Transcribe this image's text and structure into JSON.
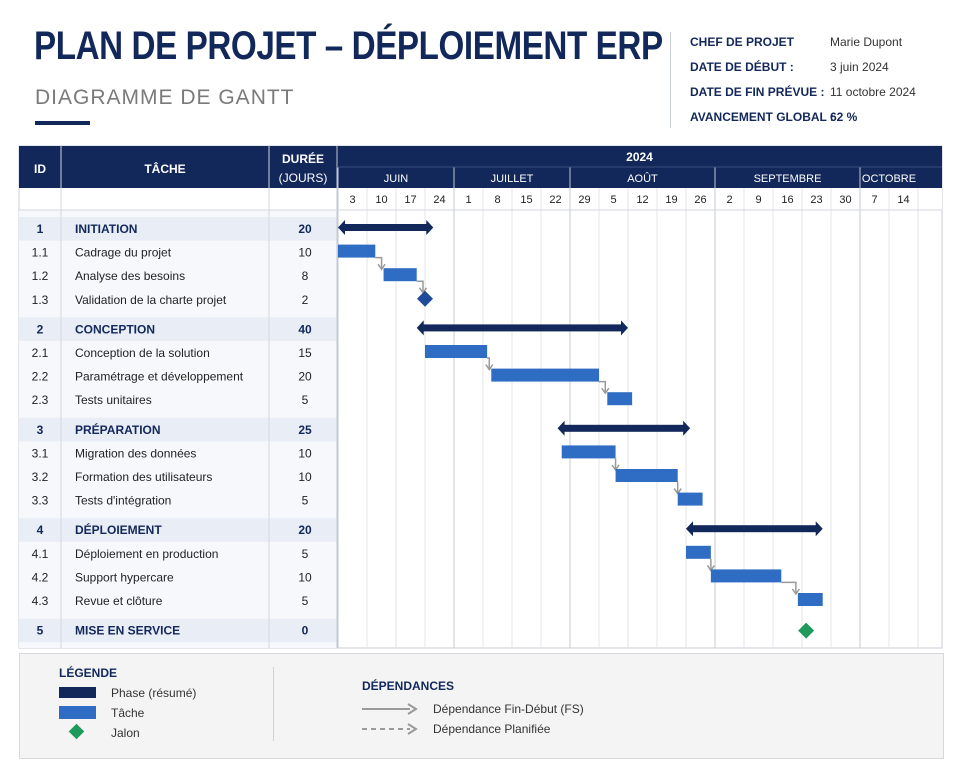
{
  "header": {
    "title": "PLAN DE PROJET – DÉPLOIEMENT ERP",
    "subtitle": "DIAGRAMME DE GANTT"
  },
  "info": [
    {
      "label": "CHEF DE PROJET",
      "value": "Marie Dupont"
    },
    {
      "label": "DATE DE DÉBUT :",
      "value": "3 juin 2024"
    },
    {
      "label": "DATE DE FIN PRÉVUE :",
      "value": "11 octobre 2024"
    },
    {
      "label": "AVANCEMENT GLOBAL :",
      "value": "62 %"
    }
  ],
  "chart_data": {
    "type": "gantt",
    "columns": {
      "id": "ID",
      "task": "TÂCHE",
      "duration_line1": "DURÉE",
      "duration_line2": "(JOURS)"
    },
    "year": "2024",
    "months": [
      "JUIN",
      "JUILLET",
      "AOÛT",
      "SEPTEMBRE",
      "OCTOBRE"
    ],
    "week_ticks": [
      "3",
      "10",
      "17",
      "24",
      "1",
      "8",
      "15",
      "22",
      "29",
      "5",
      "12",
      "19",
      "26",
      "2",
      "9",
      "16",
      "23",
      "30",
      "7",
      "14"
    ],
    "month_week_counts": [
      4,
      4,
      5,
      5,
      2
    ],
    "rows": [
      {
        "id": "1",
        "name": "INITIATION",
        "duration": "20",
        "type": "phase",
        "start": "2024-06-03",
        "end": "2024-06-26"
      },
      {
        "id": "1.1",
        "name": "Cadrage du projet",
        "duration": "10",
        "type": "task",
        "start": "2024-06-03",
        "end": "2024-06-12"
      },
      {
        "id": "1.2",
        "name": "Analyse des besoins",
        "duration": "8",
        "type": "task",
        "start": "2024-06-14",
        "end": "2024-06-22"
      },
      {
        "id": "1.3",
        "name": "Validation de la charte projet",
        "duration": "2",
        "type": "milestone",
        "date": "2024-06-24",
        "end": "2024-06-24"
      },
      {
        "id": "2",
        "name": "CONCEPTION",
        "duration": "40",
        "type": "phase",
        "start": "2024-06-22",
        "end": "2024-08-12"
      },
      {
        "id": "2.1",
        "name": "Conception de la solution",
        "duration": "15",
        "type": "task",
        "start": "2024-06-24",
        "end": "2024-07-09"
      },
      {
        "id": "2.2",
        "name": "Paramétrage et développement",
        "duration": "20",
        "type": "task",
        "start": "2024-07-10",
        "end": "2024-08-05"
      },
      {
        "id": "2.3",
        "name": "Tests unitaires",
        "duration": "5",
        "type": "task",
        "start": "2024-08-07",
        "end": "2024-08-13"
      },
      {
        "id": "3",
        "name": "PRÉPARATION",
        "duration": "25",
        "type": "phase",
        "start": "2024-07-26",
        "end": "2024-08-27"
      },
      {
        "id": "3.1",
        "name": "Migration des données",
        "duration": "10",
        "type": "task",
        "start": "2024-07-27",
        "end": "2024-08-09"
      },
      {
        "id": "3.2",
        "name": "Formation des utilisateurs",
        "duration": "10",
        "type": "task",
        "start": "2024-08-09",
        "end": "2024-08-24"
      },
      {
        "id": "3.3",
        "name": "Tests d'intégration",
        "duration": "5",
        "type": "task",
        "start": "2024-08-24",
        "end": "2024-08-30"
      },
      {
        "id": "4",
        "name": "DÉPLOIEMENT",
        "duration": "20",
        "type": "phase",
        "start": "2024-08-26",
        "end": "2024-09-28"
      },
      {
        "id": "4.1",
        "name": "Déploiement en production",
        "duration": "5",
        "type": "task",
        "start": "2024-08-26",
        "end": "2024-09-01"
      },
      {
        "id": "4.2",
        "name": "Support hypercare",
        "duration": "10",
        "type": "task",
        "start": "2024-09-01",
        "end": "2024-09-18"
      },
      {
        "id": "4.3",
        "name": "Revue et clôture",
        "duration": "5",
        "type": "task",
        "start": "2024-09-22",
        "end": "2024-09-28"
      },
      {
        "id": "5",
        "name": "MISE EN SERVICE",
        "duration": "0",
        "type": "milestone-final",
        "date": "2024-09-24",
        "end": "2024-09-24"
      }
    ],
    "dependencies": [
      [
        "1.1",
        "1.2"
      ],
      [
        "1.2",
        "1.3"
      ],
      [
        "2.1",
        "2.2"
      ],
      [
        "2.2",
        "2.3"
      ],
      [
        "3.1",
        "3.2"
      ],
      [
        "3.2",
        "3.3"
      ],
      [
        "4.1",
        "4.2"
      ],
      [
        "4.2",
        "4.3"
      ]
    ],
    "colors": {
      "header": "#12275a",
      "phase": "#12275a",
      "task": "#2f6dc4",
      "milestone": "#1f4b99",
      "final": "#1f9a5c",
      "dependency": "#9a9a9a",
      "phase_row": "#e9eef6",
      "zebra": "#f6f8fb"
    }
  },
  "legend": {
    "title": "LÉGENDE",
    "items": [
      {
        "label": "Phase (résumé)"
      },
      {
        "label": "Tâche"
      },
      {
        "label": "Jalon"
      }
    ],
    "dependencies_title": "DÉPENDANCES",
    "dependency_items": [
      {
        "label": "Dépendance Fin-Début (FS)"
      },
      {
        "label": "Dépendance Planifiée"
      }
    ]
  }
}
